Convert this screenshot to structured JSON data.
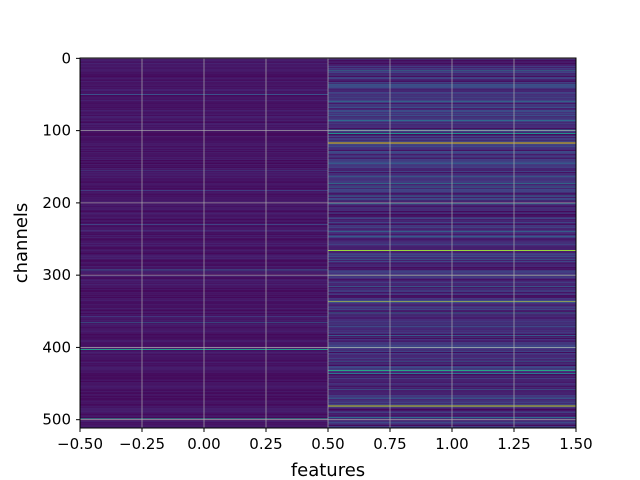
{
  "chart_data": {
    "type": "heatmap",
    "title": "",
    "xlabel": "features",
    "ylabel": "channels",
    "x_ticks": [
      "−0.50",
      "−0.25",
      "0.00",
      "0.25",
      "0.50",
      "0.75",
      "1.00",
      "1.25",
      "1.50"
    ],
    "y_ticks": [
      "0",
      "100",
      "200",
      "300",
      "400",
      "500"
    ],
    "xlim": [
      -0.5,
      1.5
    ],
    "ylim": [
      511.5,
      -0.5
    ],
    "y_inverted": true,
    "grid": true,
    "colormap": "viridis",
    "columns": [
      0,
      1
    ],
    "rows": 512,
    "column_baseline": [
      0.05,
      0.08
    ],
    "highlights": {
      "column_0": [
        {
          "channel": 50,
          "value": 0.25
        },
        {
          "channel": 155,
          "value": 0.2
        },
        {
          "channel": 183,
          "value": 0.18
        },
        {
          "channel": 230,
          "value": 0.2
        },
        {
          "channel": 238,
          "value": 0.15
        },
        {
          "channel": 293,
          "value": 0.28
        },
        {
          "channel": 357,
          "value": 0.22
        },
        {
          "channel": 365,
          "value": 0.35
        },
        {
          "channel": 403,
          "value": 0.55
        },
        {
          "channel": 498,
          "value": 0.6
        }
      ],
      "column_1": [
        {
          "channel": 17,
          "value": 0.45
        },
        {
          "channel": 37,
          "value": 0.3
        },
        {
          "channel": 60,
          "value": 0.45
        },
        {
          "channel": 73,
          "value": 0.3
        },
        {
          "channel": 86,
          "value": 0.35
        },
        {
          "channel": 99,
          "value": 0.4
        },
        {
          "channel": 104,
          "value": 0.5
        },
        {
          "channel": 117,
          "value": 0.95
        },
        {
          "channel": 145,
          "value": 0.35
        },
        {
          "channel": 164,
          "value": 0.4
        },
        {
          "channel": 173,
          "value": 0.5
        },
        {
          "channel": 178,
          "value": 0.35
        },
        {
          "channel": 190,
          "value": 0.4
        },
        {
          "channel": 201,
          "value": 0.45
        },
        {
          "channel": 240,
          "value": 0.4
        },
        {
          "channel": 246,
          "value": 0.35
        },
        {
          "channel": 266,
          "value": 0.85
        },
        {
          "channel": 278,
          "value": 0.35
        },
        {
          "channel": 300,
          "value": 1.0
        },
        {
          "channel": 316,
          "value": 0.35
        },
        {
          "channel": 336,
          "value": 0.95
        },
        {
          "channel": 352,
          "value": 0.4
        },
        {
          "channel": 383,
          "value": 0.35
        },
        {
          "channel": 400,
          "value": 0.3
        },
        {
          "channel": 419,
          "value": 0.35
        },
        {
          "channel": 432,
          "value": 0.6
        },
        {
          "channel": 436,
          "value": 0.4
        },
        {
          "channel": 458,
          "value": 0.35
        },
        {
          "channel": 470,
          "value": 0.3
        },
        {
          "channel": 481,
          "value": 0.9
        },
        {
          "channel": 497,
          "value": 0.35
        }
      ]
    }
  }
}
